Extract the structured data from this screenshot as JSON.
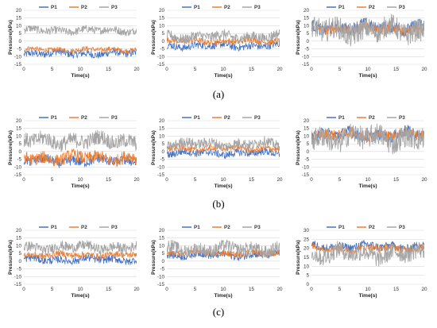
{
  "figure_labels": [
    "(a)",
    "(b)",
    "(c)"
  ],
  "colors": {
    "P1": "#4472c4",
    "P2": "#ed7d31",
    "P3": "#a5a5a5"
  },
  "chart_data": [
    {
      "type": "line",
      "row": "a",
      "col": 1,
      "xlabel": "Time(s)",
      "ylabel": "Pressure(kPa)",
      "xlim": [
        0,
        20
      ],
      "xticks": [
        0,
        5,
        10,
        15,
        20
      ],
      "ylim": [
        -15,
        20
      ],
      "yticks": [
        -15,
        -10,
        -5,
        0,
        5,
        10,
        15,
        20
      ],
      "legend": [
        "P1",
        "P2",
        "P3"
      ],
      "legend_position": "top",
      "series": [
        {
          "name": "P1",
          "mean": -8,
          "amplitude": 3
        },
        {
          "name": "P2",
          "mean": -5.5,
          "amplitude": 2
        },
        {
          "name": "P3",
          "mean": 7,
          "amplitude": 3
        }
      ]
    },
    {
      "type": "line",
      "row": "a",
      "col": 2,
      "xlabel": "Time(s)",
      "ylabel": "Pressure(kPa)",
      "xlim": [
        0,
        20
      ],
      "xticks": [
        0,
        5,
        10,
        15,
        20
      ],
      "ylim": [
        -15,
        20
      ],
      "yticks": [
        -15,
        -10,
        -5,
        0,
        5,
        10,
        15,
        20
      ],
      "legend": [
        "P1",
        "P2",
        "P3"
      ],
      "legend_position": "top",
      "series": [
        {
          "name": "P1",
          "mean": -3,
          "amplitude": 3
        },
        {
          "name": "P2",
          "mean": 0,
          "amplitude": 2.5
        },
        {
          "name": "P3",
          "mean": 3,
          "amplitude": 4
        }
      ]
    },
    {
      "type": "line",
      "row": "a",
      "col": 3,
      "xlabel": "Time(s)",
      "ylabel": "Pressure(kPa)",
      "xlim": [
        0,
        20
      ],
      "xticks": [
        0,
        5,
        10,
        15,
        20
      ],
      "ylim": [
        -15,
        20
      ],
      "yticks": [
        -15,
        -10,
        -5,
        0,
        5,
        10,
        15,
        20
      ],
      "legend": [
        "P1",
        "P2",
        "P3"
      ],
      "legend_position": "top",
      "series": [
        {
          "name": "P1",
          "mean": 9,
          "amplitude": 5
        },
        {
          "name": "P2",
          "mean": 8,
          "amplitude": 4
        },
        {
          "name": "P3",
          "mean": 7,
          "amplitude": 9
        }
      ]
    },
    {
      "type": "line",
      "row": "b",
      "col": 1,
      "xlabel": "Time(s)",
      "ylabel": "Pressure(kPa)",
      "xlim": [
        0,
        20
      ],
      "xticks": [
        0,
        5,
        10,
        15,
        20
      ],
      "ylim": [
        -15,
        20
      ],
      "yticks": [
        -15,
        -10,
        -5,
        0,
        5,
        10,
        15,
        20
      ],
      "legend": [
        "P1",
        "P2",
        "P3"
      ],
      "legend_position": "top",
      "series": [
        {
          "name": "P1",
          "mean": -6,
          "amplitude": 4
        },
        {
          "name": "P2",
          "mean": -4,
          "amplitude": 5
        },
        {
          "name": "P3",
          "mean": 7,
          "amplitude": 6
        }
      ]
    },
    {
      "type": "line",
      "row": "b",
      "col": 2,
      "xlabel": "Time(s)",
      "ylabel": "Pressure(kPa)",
      "xlim": [
        0,
        20
      ],
      "xticks": [
        0,
        5,
        10,
        15,
        20
      ],
      "ylim": [
        -15,
        20
      ],
      "yticks": [
        -15,
        -10,
        -5,
        0,
        5,
        10,
        15,
        20
      ],
      "legend": [
        "P1",
        "P2",
        "P3"
      ],
      "legend_position": "top",
      "series": [
        {
          "name": "P1",
          "mean": -1,
          "amplitude": 3
        },
        {
          "name": "P2",
          "mean": 2,
          "amplitude": 2.5
        },
        {
          "name": "P3",
          "mean": 5,
          "amplitude": 4
        }
      ]
    },
    {
      "type": "line",
      "row": "b",
      "col": 3,
      "xlabel": "Time(s)",
      "ylabel": "Pressure(kPa)",
      "xlim": [
        0,
        20
      ],
      "xticks": [
        0,
        5,
        10,
        15,
        20
      ],
      "ylim": [
        -15,
        20
      ],
      "yticks": [
        -15,
        -10,
        -5,
        0,
        5,
        10,
        15,
        20
      ],
      "legend": [
        "P1",
        "P2",
        "P3"
      ],
      "legend_position": "top",
      "series": [
        {
          "name": "P1",
          "mean": 11,
          "amplitude": 5
        },
        {
          "name": "P2",
          "mean": 11,
          "amplitude": 4
        },
        {
          "name": "P3",
          "mean": 9,
          "amplitude": 9
        }
      ]
    },
    {
      "type": "line",
      "row": "c",
      "col": 1,
      "xlabel": "Time(s)",
      "ylabel": "Pressure(kPa)",
      "xlim": [
        0,
        20
      ],
      "xticks": [
        0,
        5,
        10,
        15,
        20
      ],
      "ylim": [
        -15,
        20
      ],
      "yticks": [
        -15,
        -10,
        -5,
        0,
        5,
        10,
        15,
        20
      ],
      "legend": [
        "P1",
        "P2",
        "P3"
      ],
      "legend_position": "top",
      "series": [
        {
          "name": "P1",
          "mean": 1,
          "amplitude": 3
        },
        {
          "name": "P2",
          "mean": 4,
          "amplitude": 2.5
        },
        {
          "name": "P3",
          "mean": 9,
          "amplitude": 4
        }
      ]
    },
    {
      "type": "line",
      "row": "c",
      "col": 2,
      "xlabel": "Time(s)",
      "ylabel": "Pressure(kPa)",
      "xlim": [
        0,
        20
      ],
      "xticks": [
        0,
        5,
        10,
        15,
        20
      ],
      "ylim": [
        -15,
        20
      ],
      "yticks": [
        -15,
        -10,
        -5,
        0,
        5,
        10,
        15,
        20
      ],
      "legend": [
        "P1",
        "P2",
        "P3"
      ],
      "legend_position": "top",
      "series": [
        {
          "name": "P1",
          "mean": 4,
          "amplitude": 3
        },
        {
          "name": "P2",
          "mean": 5,
          "amplitude": 2.5
        },
        {
          "name": "P3",
          "mean": 8,
          "amplitude": 5
        }
      ]
    },
    {
      "type": "line",
      "row": "c",
      "col": 3,
      "xlabel": "Time(s)",
      "ylabel": "Pressure(kPa)",
      "xlim": [
        0,
        20
      ],
      "xticks": [
        0,
        5,
        10,
        15,
        20
      ],
      "ylim": [
        0,
        30
      ],
      "yticks": [
        0,
        5,
        10,
        15,
        20,
        25,
        30
      ],
      "legend": [
        "P1",
        "P2",
        "P3"
      ],
      "legend_position": "top",
      "series": [
        {
          "name": "P1",
          "mean": 21,
          "amplitude": 3
        },
        {
          "name": "P2",
          "mean": 20,
          "amplitude": 2.5
        },
        {
          "name": "P3",
          "mean": 17,
          "amplitude": 6
        }
      ]
    }
  ]
}
